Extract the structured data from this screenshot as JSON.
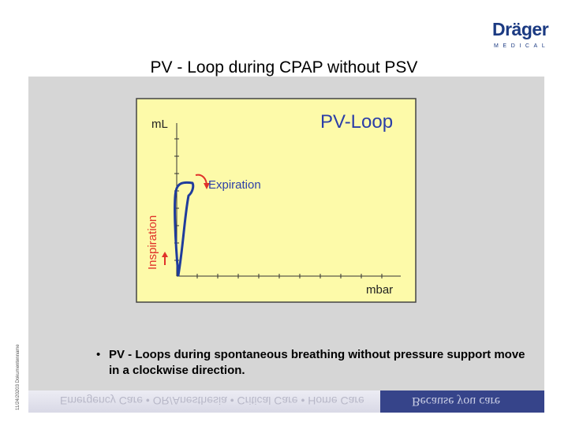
{
  "logo": {
    "word": "Dräger",
    "sub": "MEDICAL"
  },
  "title": "PV - Loop during CPAP without PSV",
  "side_text": "11/24/20203 Dokumentenname",
  "diagram": {
    "heading": "PV-Loop",
    "y_axis_label": "mL",
    "x_axis_label": "mbar",
    "expiration_label": "Expiration",
    "inspiration_label": "Inspiration",
    "colors": {
      "background": "#fdfaa9",
      "loop": "#1f3c9c",
      "arrow": "#e0322a",
      "label_red": "#e0322a",
      "label_blue": "#2b3ea8"
    }
  },
  "bullet": {
    "marker": "•",
    "text": "PV - Loops during spontaneous breathing without pressure support move in a clockwise direction."
  },
  "footer": {
    "left_text": "Emergency Care • OR/Anesthesia • Critical Care • Home Care",
    "right_text": "Because you care"
  }
}
